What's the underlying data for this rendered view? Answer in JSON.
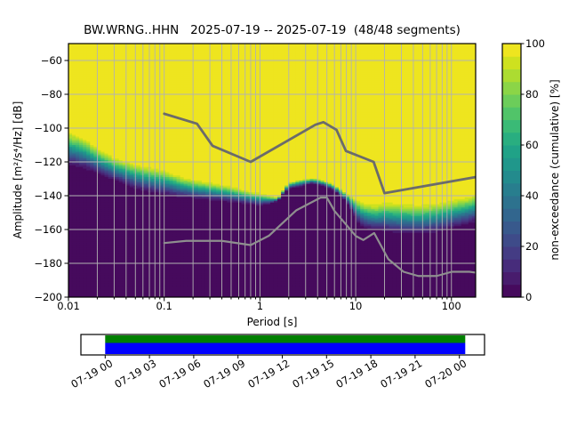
{
  "title": "BW.WRNG..HHN   2025-07-19 -- 2025-07-19  (48/48 segments)",
  "chart_data": {
    "type": "heatmap",
    "title": "BW.WRNG..HHN   2025-07-19 -- 2025-07-19  (48/48 segments)",
    "xlabel": "Period [s]",
    "ylabel": "Amplitude [m²/s⁴/Hz] [dB]",
    "x_scale": "log",
    "x_range_seconds": [
      0.01,
      179
    ],
    "y_range_db": [
      -200,
      -50
    ],
    "grid": true,
    "x_ticks": {
      "values": [
        0.01,
        0.1,
        1,
        10,
        100
      ],
      "labels": [
        "0.01",
        "0.1",
        "1",
        "10",
        "100"
      ]
    },
    "y_ticks": {
      "values": [
        -60,
        -80,
        -100,
        -120,
        -140,
        -160,
        -180,
        -200
      ],
      "labels": [
        "−60",
        "−80",
        "−100",
        "−120",
        "−140",
        "−160",
        "−180",
        "−200"
      ]
    },
    "colorbar": {
      "label": "non-exceedance (cumulative) [%]",
      "tick_values": [
        0,
        20,
        40,
        60,
        80,
        100
      ],
      "tick_labels": [
        "0",
        "20",
        "40",
        "60",
        "80",
        "100"
      ],
      "levels": 20,
      "colormap": "viridis",
      "stops": [
        "#440154",
        "#471365",
        "#482475",
        "#463480",
        "#414487",
        "#3b528b",
        "#355f8d",
        "#2f6c8e",
        "#2a788e",
        "#25848e",
        "#21918c",
        "#1e9c89",
        "#22a884",
        "#2fb47c",
        "#44bf70",
        "#5ec962",
        "#7ad151",
        "#9bd93c",
        "#bddf26",
        "#dfe318",
        "#fde725"
      ]
    },
    "cumulative_distribution": {
      "points": [
        {
          "period_s": 0.0105,
          "db_at_100pct": -99.5,
          "db_at_0pct": -125.0
        },
        {
          "period_s": 0.015,
          "db_at_100pct": -103.5,
          "db_at_0pct": -127.0
        },
        {
          "period_s": 0.02,
          "db_at_100pct": -109.3,
          "db_at_0pct": -129.5
        },
        {
          "period_s": 0.03,
          "db_at_100pct": -115.4,
          "db_at_0pct": -133.0
        },
        {
          "period_s": 0.05,
          "db_at_100pct": -119.0,
          "db_at_0pct": -138.3
        },
        {
          "period_s": 0.08,
          "db_at_100pct": -121.6,
          "db_at_0pct": -140.9
        },
        {
          "period_s": 0.1,
          "db_at_100pct": -122.5,
          "db_at_0pct": -141.8
        },
        {
          "period_s": 0.15,
          "db_at_100pct": -126.8,
          "db_at_0pct": -143.0
        },
        {
          "period_s": 0.2,
          "db_at_100pct": -128.6,
          "db_at_0pct": -143.5
        },
        {
          "period_s": 0.3,
          "db_at_100pct": -130.4,
          "db_at_0pct": -144.4
        },
        {
          "period_s": 0.5,
          "db_at_100pct": -133.0,
          "db_at_0pct": -145.3
        },
        {
          "period_s": 0.7,
          "db_at_100pct": -135.5,
          "db_at_0pct": -146.2
        },
        {
          "period_s": 1.0,
          "db_at_100pct": -137.5,
          "db_at_0pct": -147.0
        },
        {
          "period_s": 1.3,
          "db_at_100pct": -139.5,
          "db_at_0pct": -145.5
        },
        {
          "period_s": 1.55,
          "db_at_100pct": -141.0,
          "db_at_0pct": -143.5
        },
        {
          "period_s": 1.75,
          "db_at_100pct": -136.0,
          "db_at_0pct": -139.5
        },
        {
          "period_s": 2.0,
          "db_at_100pct": -131.5,
          "db_at_0pct": -136.5
        },
        {
          "period_s": 2.6,
          "db_at_100pct": -130.0,
          "db_at_0pct": -135.5
        },
        {
          "period_s": 3.5,
          "db_at_100pct": -129.0,
          "db_at_0pct": -133.5
        },
        {
          "period_s": 4.7,
          "db_at_100pct": -130.5,
          "db_at_0pct": -135.0
        },
        {
          "period_s": 6.0,
          "db_at_100pct": -133.0,
          "db_at_0pct": -137.5
        },
        {
          "period_s": 7.9,
          "db_at_100pct": -137.4,
          "db_at_0pct": -144.4
        },
        {
          "period_s": 9.5,
          "db_at_100pct": -139.5,
          "db_at_0pct": -152.0
        },
        {
          "period_s": 11.0,
          "db_at_100pct": -141.0,
          "db_at_0pct": -159.5
        },
        {
          "period_s": 13.0,
          "db_at_100pct": -142.0,
          "db_at_0pct": -162.0
        },
        {
          "period_s": 16.0,
          "db_at_100pct": -143.0,
          "db_at_0pct": -163.0
        },
        {
          "period_s": 20.0,
          "db_at_100pct": -141.0,
          "db_at_0pct": -163.7
        },
        {
          "period_s": 30.0,
          "db_at_100pct": -141.8,
          "db_at_0pct": -165.4
        },
        {
          "period_s": 45.0,
          "db_at_100pct": -142.5,
          "db_at_0pct": -165.5
        },
        {
          "period_s": 70.0,
          "db_at_100pct": -141.6,
          "db_at_0pct": -164.6
        },
        {
          "period_s": 100.0,
          "db_at_100pct": -140.0,
          "db_at_0pct": -161.9
        },
        {
          "period_s": 140.0,
          "db_at_100pct": -138.5,
          "db_at_0pct": -160.0
        },
        {
          "period_s": 179.0,
          "db_at_100pct": -136.8,
          "db_at_0pct": -158.2
        }
      ]
    },
    "noise_models": {
      "high_noise_model_db": [
        [
          0.1,
          -91.5
        ],
        [
          0.22,
          -97.4
        ],
        [
          0.32,
          -110.5
        ],
        [
          0.8,
          -120.0
        ],
        [
          3.8,
          -98.0
        ],
        [
          4.6,
          -96.5
        ],
        [
          6.3,
          -101.0
        ],
        [
          7.9,
          -113.5
        ],
        [
          15.4,
          -120.0
        ],
        [
          20.0,
          -138.5
        ],
        [
          354.8,
          -126.0
        ]
      ],
      "low_noise_model_db": [
        [
          0.1,
          -168.0
        ],
        [
          0.17,
          -166.7
        ],
        [
          0.4,
          -166.7
        ],
        [
          0.8,
          -169.2
        ],
        [
          1.24,
          -163.7
        ],
        [
          2.4,
          -148.6
        ],
        [
          4.3,
          -141.1
        ],
        [
          5.0,
          -141.1
        ],
        [
          6.0,
          -149.0
        ],
        [
          10.0,
          -163.8
        ],
        [
          12.0,
          -166.2
        ],
        [
          15.6,
          -162.1
        ],
        [
          21.9,
          -177.5
        ],
        [
          31.6,
          -185.0
        ],
        [
          45.0,
          -187.5
        ],
        [
          70.0,
          -187.5
        ],
        [
          101.0,
          -185.0
        ],
        [
          154.0,
          -185.0
        ],
        [
          328.0,
          -187.5
        ]
      ],
      "high_color": "#6b6b6b",
      "low_color": "#8f8f8f"
    }
  },
  "timeline": {
    "tick_labels": [
      "07-19 00",
      "07-19 03",
      "07-19 06",
      "07-19 09",
      "07-19 12",
      "07-19 15",
      "07-19 18",
      "07-19 21",
      "07-20 00"
    ],
    "coverage_bar": {
      "top_color": "#008000",
      "bottom_color": "#0000ff"
    }
  }
}
